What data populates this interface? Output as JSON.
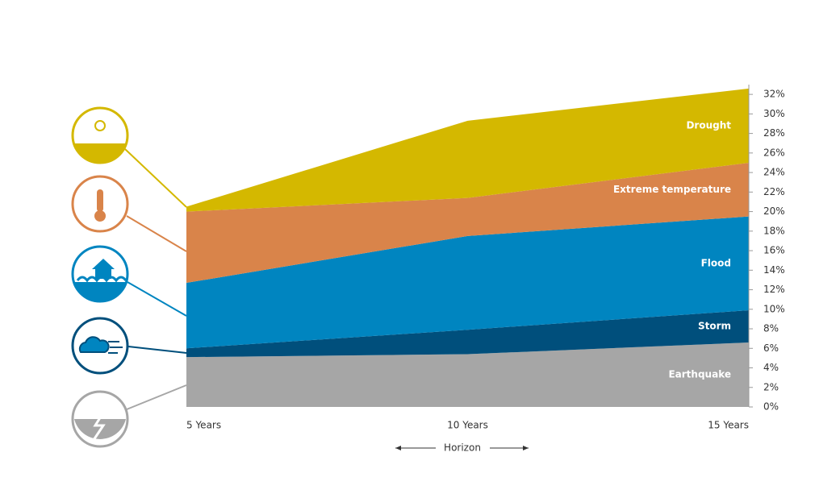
{
  "chart_data": {
    "type": "stacked-area",
    "categories": [
      "5 Years",
      "10 Years",
      "15 Years"
    ],
    "x_label": "Horizon",
    "series": [
      {
        "name": "Earthquake",
        "color": "#a6a6a6",
        "values": [
          5.1,
          5.4,
          6.6
        ]
      },
      {
        "name": "Storm",
        "color": "#004f7c",
        "values": [
          0.9,
          2.5,
          3.3
        ]
      },
      {
        "name": "Flood",
        "color": "#0085c0",
        "values": [
          6.7,
          9.6,
          9.6
        ]
      },
      {
        "name": "Extreme temperature",
        "color": "#d9844a",
        "values": [
          7.3,
          3.9,
          5.5
        ]
      },
      {
        "name": "Drought",
        "color": "#d4b800",
        "values": [
          0.5,
          7.9,
          7.6
        ]
      }
    ],
    "ylim": [
      0,
      33
    ],
    "yticks": [
      {
        "value": 0,
        "label": "0%"
      },
      {
        "value": 2,
        "label": "2%"
      },
      {
        "value": 4,
        "label": "4%"
      },
      {
        "value": 6,
        "label": "6%"
      },
      {
        "value": 8,
        "label": "8%"
      },
      {
        "value": 10,
        "label": "10%"
      },
      {
        "value": 12,
        "label": "12%"
      },
      {
        "value": 14,
        "label": "14%"
      },
      {
        "value": 16,
        "label": "16%"
      },
      {
        "value": 18,
        "label": "18%"
      },
      {
        "value": 20,
        "label": "20%"
      },
      {
        "value": 22,
        "label": "22%"
      },
      {
        "value": 24,
        "label": "24%"
      },
      {
        "value": 26,
        "label": "26%"
      },
      {
        "value": 28,
        "label": "28%"
      },
      {
        "value": 30,
        "label": "30%"
      },
      {
        "value": 32,
        "label": "32%"
      }
    ],
    "y_axis_side": "right"
  }
}
